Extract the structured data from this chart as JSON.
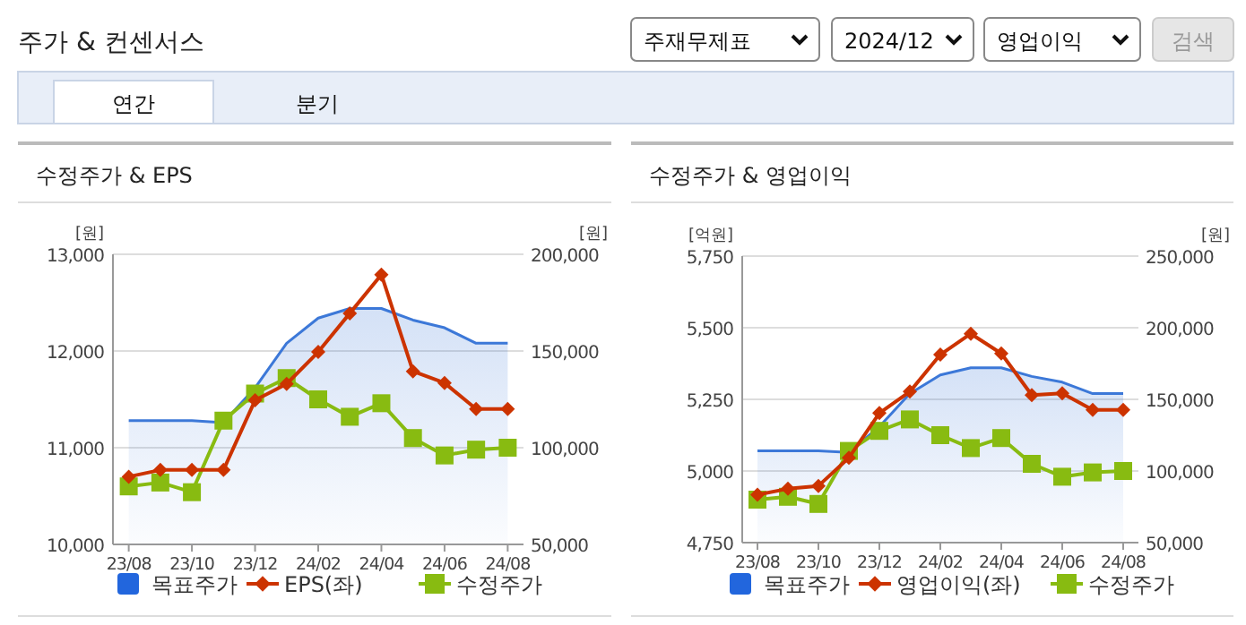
{
  "chart_data": [
    {
      "type": "other",
      "annotations": [
        "주가 & 컨센서스",
        "주재무제표",
        "2024/12",
        "영업이익",
        "검색",
        "연간",
        "분기"
      ]
    },
    {
      "type": "line",
      "title": "수정주가 & EPS",
      "ylabel": "[원]",
      "y2label": "[원]",
      "categories": [
        "23/08",
        null,
        "23/10",
        null,
        "23/12",
        null,
        "24/02",
        null,
        "24/04",
        null,
        "24/06",
        null,
        "24/08"
      ],
      "ylim": [
        10000,
        13000
      ],
      "yticks": [
        {
          "value": 10000,
          "label": "10,000"
        },
        {
          "value": 11000,
          "label": "11,000"
        },
        {
          "value": 12000,
          "label": "12,000"
        },
        {
          "value": 13000,
          "label": "13,000"
        }
      ],
      "y2lim": [
        50000,
        200000
      ],
      "y2ticks": [
        {
          "value": 50000,
          "label": "50,000"
        },
        {
          "value": 100000,
          "label": "100,000"
        },
        {
          "value": 150000,
          "label": "150,000"
        },
        {
          "value": 200000,
          "label": "200,000"
        }
      ],
      "grid": "y",
      "legend": "bottom",
      "series": [
        {
          "name": "목표주가",
          "type": "area",
          "axis": "y2",
          "color": "#3c78d8",
          "marker": "none",
          "values": [
            114000,
            114000,
            114000,
            113000,
            131000,
            154000,
            167000,
            172000,
            172000,
            166000,
            162000,
            154000,
            154000
          ]
        },
        {
          "name": "EPS(좌)",
          "type": "line",
          "color": "#cc3300",
          "marker": "diamond",
          "values": [
            10700,
            10770,
            10770,
            10770,
            11490,
            11660,
            11990,
            12390,
            12790,
            11790,
            11670,
            11400,
            11400
          ]
        },
        {
          "name": "수정주가",
          "type": "line",
          "axis": "y2",
          "color": "#88bb11",
          "marker": "square",
          "values": [
            80000,
            82000,
            77000,
            114000,
            128000,
            136000,
            125000,
            116000,
            123000,
            105000,
            96000,
            99000,
            100000
          ]
        }
      ]
    },
    {
      "type": "line",
      "title": "수정주가 & 영업이익",
      "ylabel": "[억원]",
      "y2label": "[원]",
      "categories": [
        "23/08",
        null,
        "23/10",
        null,
        "23/12",
        null,
        "24/02",
        null,
        "24/04",
        null,
        "24/06",
        null,
        "24/08"
      ],
      "ylim": [
        4750,
        5750
      ],
      "yticks": [
        {
          "value": 4750,
          "label": "4,750"
        },
        {
          "value": 5000,
          "label": "5,000"
        },
        {
          "value": 5250,
          "label": "5,250"
        },
        {
          "value": 5500,
          "label": "5,500"
        },
        {
          "value": 5750,
          "label": "5,750"
        }
      ],
      "y2lim": [
        50000,
        250000
      ],
      "y2ticks": [
        {
          "value": 50000,
          "label": "50,000"
        },
        {
          "value": 100000,
          "label": "100,000"
        },
        {
          "value": 150000,
          "label": "150,000"
        },
        {
          "value": 200000,
          "label": "200,000"
        },
        {
          "value": 250000,
          "label": "250,000"
        }
      ],
      "grid": "y",
      "legend": "bottom",
      "series": [
        {
          "name": "목표주가",
          "type": "area",
          "axis": "y2",
          "color": "#3c78d8",
          "marker": "none",
          "values": [
            114000,
            114000,
            114000,
            113000,
            131000,
            154000,
            167000,
            172000,
            172000,
            166000,
            162000,
            154000,
            154000
          ]
        },
        {
          "name": "영업이익(좌)",
          "type": "line",
          "color": "#cc3300",
          "marker": "diamond",
          "values": [
            4917,
            4938,
            4948,
            5046,
            5202,
            5277,
            5406,
            5479,
            5410,
            5265,
            5271,
            5213,
            5213
          ]
        },
        {
          "name": "수정주가",
          "type": "line",
          "axis": "y2",
          "color": "#88bb11",
          "marker": "square",
          "values": [
            80000,
            82000,
            77000,
            114000,
            128000,
            136000,
            125000,
            116000,
            123000,
            105000,
            96000,
            99000,
            100000
          ]
        }
      ]
    }
  ]
}
